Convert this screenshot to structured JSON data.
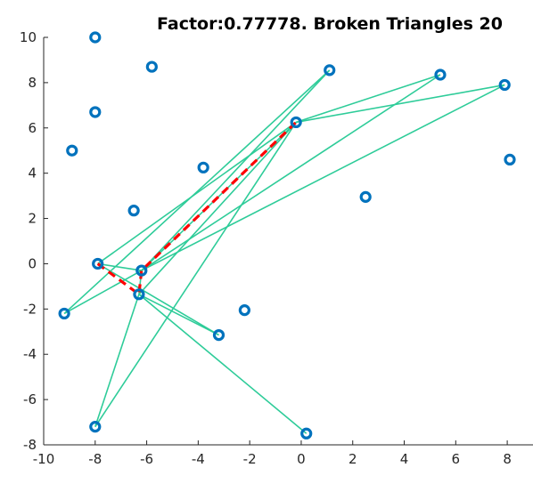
{
  "chart_data": {
    "type": "scatter",
    "title": "Factor:0.77778. Broken Triangles 20",
    "xlabel": "",
    "ylabel": "",
    "xlim": [
      -10,
      9
    ],
    "ylim": [
      -8,
      10
    ],
    "xticks": [
      -10,
      -8,
      -6,
      -4,
      -2,
      0,
      2,
      4,
      6,
      8
    ],
    "yticks": [
      -8,
      -6,
      -4,
      -2,
      0,
      2,
      4,
      6,
      8,
      10
    ],
    "grid": false,
    "colors": {
      "points": "#0072BD",
      "edges": "#2ECC99",
      "path": "#FF0000"
    },
    "points": [
      {
        "x": -8.0,
        "y": 10.0
      },
      {
        "x": -5.8,
        "y": 8.7
      },
      {
        "x": -8.0,
        "y": 6.7
      },
      {
        "x": -8.9,
        "y": 5.0
      },
      {
        "x": -3.8,
        "y": 4.25
      },
      {
        "x": -6.5,
        "y": 2.35
      },
      {
        "x": 1.1,
        "y": 8.55
      },
      {
        "x": -0.2,
        "y": 6.25
      },
      {
        "x": 5.4,
        "y": 8.35
      },
      {
        "x": 7.9,
        "y": 7.9
      },
      {
        "x": 8.1,
        "y": 4.6
      },
      {
        "x": 2.5,
        "y": 2.95
      },
      {
        "x": -7.9,
        "y": 0.0
      },
      {
        "x": -6.2,
        "y": -0.3
      },
      {
        "x": -6.3,
        "y": -1.35
      },
      {
        "x": -9.2,
        "y": -2.2
      },
      {
        "x": -3.2,
        "y": -3.15
      },
      {
        "x": -2.2,
        "y": -2.05
      },
      {
        "x": -8.0,
        "y": -7.2
      },
      {
        "x": 0.2,
        "y": -7.5
      }
    ],
    "edges": [
      [
        [
          -7.9,
          0.0
        ],
        [
          -0.2,
          6.25
        ]
      ],
      [
        [
          -7.9,
          0.0
        ],
        [
          -6.2,
          -0.3
        ]
      ],
      [
        [
          -7.9,
          0.0
        ],
        [
          -3.2,
          -3.15
        ]
      ],
      [
        [
          -6.2,
          -0.3
        ],
        [
          -0.2,
          6.25
        ]
      ],
      [
        [
          -6.2,
          -0.3
        ],
        [
          1.1,
          8.55
        ]
      ],
      [
        [
          -6.2,
          -0.3
        ],
        [
          5.4,
          8.35
        ]
      ],
      [
        [
          -6.2,
          -0.3
        ],
        [
          7.9,
          7.9
        ]
      ],
      [
        [
          -6.3,
          -1.35
        ],
        [
          -0.2,
          6.25
        ]
      ],
      [
        [
          -6.3,
          -1.35
        ],
        [
          -6.2,
          -0.3
        ]
      ],
      [
        [
          -6.3,
          -1.35
        ],
        [
          -3.2,
          -3.15
        ]
      ],
      [
        [
          -6.3,
          -1.35
        ],
        [
          0.2,
          -7.5
        ]
      ],
      [
        [
          -9.2,
          -2.2
        ],
        [
          -6.2,
          -0.3
        ]
      ],
      [
        [
          -9.2,
          -2.2
        ],
        [
          1.1,
          8.55
        ]
      ],
      [
        [
          -8.0,
          -7.2
        ],
        [
          -6.3,
          -1.35
        ]
      ],
      [
        [
          -8.0,
          -7.2
        ],
        [
          -0.2,
          6.25
        ]
      ],
      [
        [
          -0.2,
          6.25
        ],
        [
          5.4,
          8.35
        ]
      ],
      [
        [
          -0.2,
          6.25
        ],
        [
          7.9,
          7.9
        ]
      ]
    ],
    "path": [
      [
        -7.9,
        0.0
      ],
      [
        -6.3,
        -1.35
      ],
      [
        -6.2,
        -0.3
      ],
      [
        -0.2,
        6.25
      ]
    ]
  }
}
